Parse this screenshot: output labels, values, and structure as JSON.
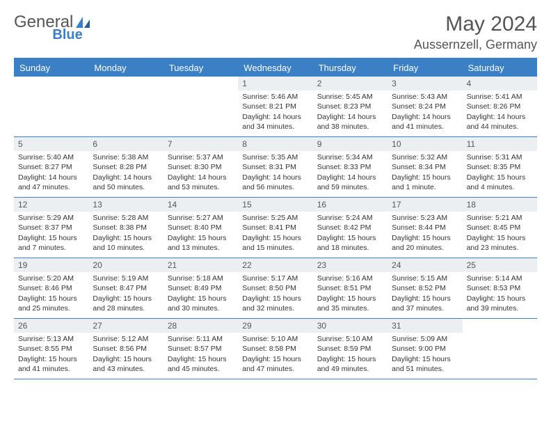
{
  "logo": {
    "text_gray": "General",
    "text_blue": "Blue"
  },
  "title": "May 2024",
  "location": "Aussernzell, Germany",
  "colors": {
    "accent": "#3b7fc4",
    "day_bg": "#eceff1",
    "text": "#333333",
    "muted": "#555555",
    "bg": "#ffffff"
  },
  "day_names": [
    "Sunday",
    "Monday",
    "Tuesday",
    "Wednesday",
    "Thursday",
    "Friday",
    "Saturday"
  ],
  "weeks": [
    [
      {
        "n": "",
        "sr": "",
        "ss": "",
        "dl": ""
      },
      {
        "n": "",
        "sr": "",
        "ss": "",
        "dl": ""
      },
      {
        "n": "",
        "sr": "",
        "ss": "",
        "dl": ""
      },
      {
        "n": "1",
        "sr": "Sunrise: 5:46 AM",
        "ss": "Sunset: 8:21 PM",
        "dl": "Daylight: 14 hours and 34 minutes."
      },
      {
        "n": "2",
        "sr": "Sunrise: 5:45 AM",
        "ss": "Sunset: 8:23 PM",
        "dl": "Daylight: 14 hours and 38 minutes."
      },
      {
        "n": "3",
        "sr": "Sunrise: 5:43 AM",
        "ss": "Sunset: 8:24 PM",
        "dl": "Daylight: 14 hours and 41 minutes."
      },
      {
        "n": "4",
        "sr": "Sunrise: 5:41 AM",
        "ss": "Sunset: 8:26 PM",
        "dl": "Daylight: 14 hours and 44 minutes."
      }
    ],
    [
      {
        "n": "5",
        "sr": "Sunrise: 5:40 AM",
        "ss": "Sunset: 8:27 PM",
        "dl": "Daylight: 14 hours and 47 minutes."
      },
      {
        "n": "6",
        "sr": "Sunrise: 5:38 AM",
        "ss": "Sunset: 8:28 PM",
        "dl": "Daylight: 14 hours and 50 minutes."
      },
      {
        "n": "7",
        "sr": "Sunrise: 5:37 AM",
        "ss": "Sunset: 8:30 PM",
        "dl": "Daylight: 14 hours and 53 minutes."
      },
      {
        "n": "8",
        "sr": "Sunrise: 5:35 AM",
        "ss": "Sunset: 8:31 PM",
        "dl": "Daylight: 14 hours and 56 minutes."
      },
      {
        "n": "9",
        "sr": "Sunrise: 5:34 AM",
        "ss": "Sunset: 8:33 PM",
        "dl": "Daylight: 14 hours and 59 minutes."
      },
      {
        "n": "10",
        "sr": "Sunrise: 5:32 AM",
        "ss": "Sunset: 8:34 PM",
        "dl": "Daylight: 15 hours and 1 minute."
      },
      {
        "n": "11",
        "sr": "Sunrise: 5:31 AM",
        "ss": "Sunset: 8:35 PM",
        "dl": "Daylight: 15 hours and 4 minutes."
      }
    ],
    [
      {
        "n": "12",
        "sr": "Sunrise: 5:29 AM",
        "ss": "Sunset: 8:37 PM",
        "dl": "Daylight: 15 hours and 7 minutes."
      },
      {
        "n": "13",
        "sr": "Sunrise: 5:28 AM",
        "ss": "Sunset: 8:38 PM",
        "dl": "Daylight: 15 hours and 10 minutes."
      },
      {
        "n": "14",
        "sr": "Sunrise: 5:27 AM",
        "ss": "Sunset: 8:40 PM",
        "dl": "Daylight: 15 hours and 13 minutes."
      },
      {
        "n": "15",
        "sr": "Sunrise: 5:25 AM",
        "ss": "Sunset: 8:41 PM",
        "dl": "Daylight: 15 hours and 15 minutes."
      },
      {
        "n": "16",
        "sr": "Sunrise: 5:24 AM",
        "ss": "Sunset: 8:42 PM",
        "dl": "Daylight: 15 hours and 18 minutes."
      },
      {
        "n": "17",
        "sr": "Sunrise: 5:23 AM",
        "ss": "Sunset: 8:44 PM",
        "dl": "Daylight: 15 hours and 20 minutes."
      },
      {
        "n": "18",
        "sr": "Sunrise: 5:21 AM",
        "ss": "Sunset: 8:45 PM",
        "dl": "Daylight: 15 hours and 23 minutes."
      }
    ],
    [
      {
        "n": "19",
        "sr": "Sunrise: 5:20 AM",
        "ss": "Sunset: 8:46 PM",
        "dl": "Daylight: 15 hours and 25 minutes."
      },
      {
        "n": "20",
        "sr": "Sunrise: 5:19 AM",
        "ss": "Sunset: 8:47 PM",
        "dl": "Daylight: 15 hours and 28 minutes."
      },
      {
        "n": "21",
        "sr": "Sunrise: 5:18 AM",
        "ss": "Sunset: 8:49 PM",
        "dl": "Daylight: 15 hours and 30 minutes."
      },
      {
        "n": "22",
        "sr": "Sunrise: 5:17 AM",
        "ss": "Sunset: 8:50 PM",
        "dl": "Daylight: 15 hours and 32 minutes."
      },
      {
        "n": "23",
        "sr": "Sunrise: 5:16 AM",
        "ss": "Sunset: 8:51 PM",
        "dl": "Daylight: 15 hours and 35 minutes."
      },
      {
        "n": "24",
        "sr": "Sunrise: 5:15 AM",
        "ss": "Sunset: 8:52 PM",
        "dl": "Daylight: 15 hours and 37 minutes."
      },
      {
        "n": "25",
        "sr": "Sunrise: 5:14 AM",
        "ss": "Sunset: 8:53 PM",
        "dl": "Daylight: 15 hours and 39 minutes."
      }
    ],
    [
      {
        "n": "26",
        "sr": "Sunrise: 5:13 AM",
        "ss": "Sunset: 8:55 PM",
        "dl": "Daylight: 15 hours and 41 minutes."
      },
      {
        "n": "27",
        "sr": "Sunrise: 5:12 AM",
        "ss": "Sunset: 8:56 PM",
        "dl": "Daylight: 15 hours and 43 minutes."
      },
      {
        "n": "28",
        "sr": "Sunrise: 5:11 AM",
        "ss": "Sunset: 8:57 PM",
        "dl": "Daylight: 15 hours and 45 minutes."
      },
      {
        "n": "29",
        "sr": "Sunrise: 5:10 AM",
        "ss": "Sunset: 8:58 PM",
        "dl": "Daylight: 15 hours and 47 minutes."
      },
      {
        "n": "30",
        "sr": "Sunrise: 5:10 AM",
        "ss": "Sunset: 8:59 PM",
        "dl": "Daylight: 15 hours and 49 minutes."
      },
      {
        "n": "31",
        "sr": "Sunrise: 5:09 AM",
        "ss": "Sunset: 9:00 PM",
        "dl": "Daylight: 15 hours and 51 minutes."
      },
      {
        "n": "",
        "sr": "",
        "ss": "",
        "dl": ""
      }
    ]
  ]
}
